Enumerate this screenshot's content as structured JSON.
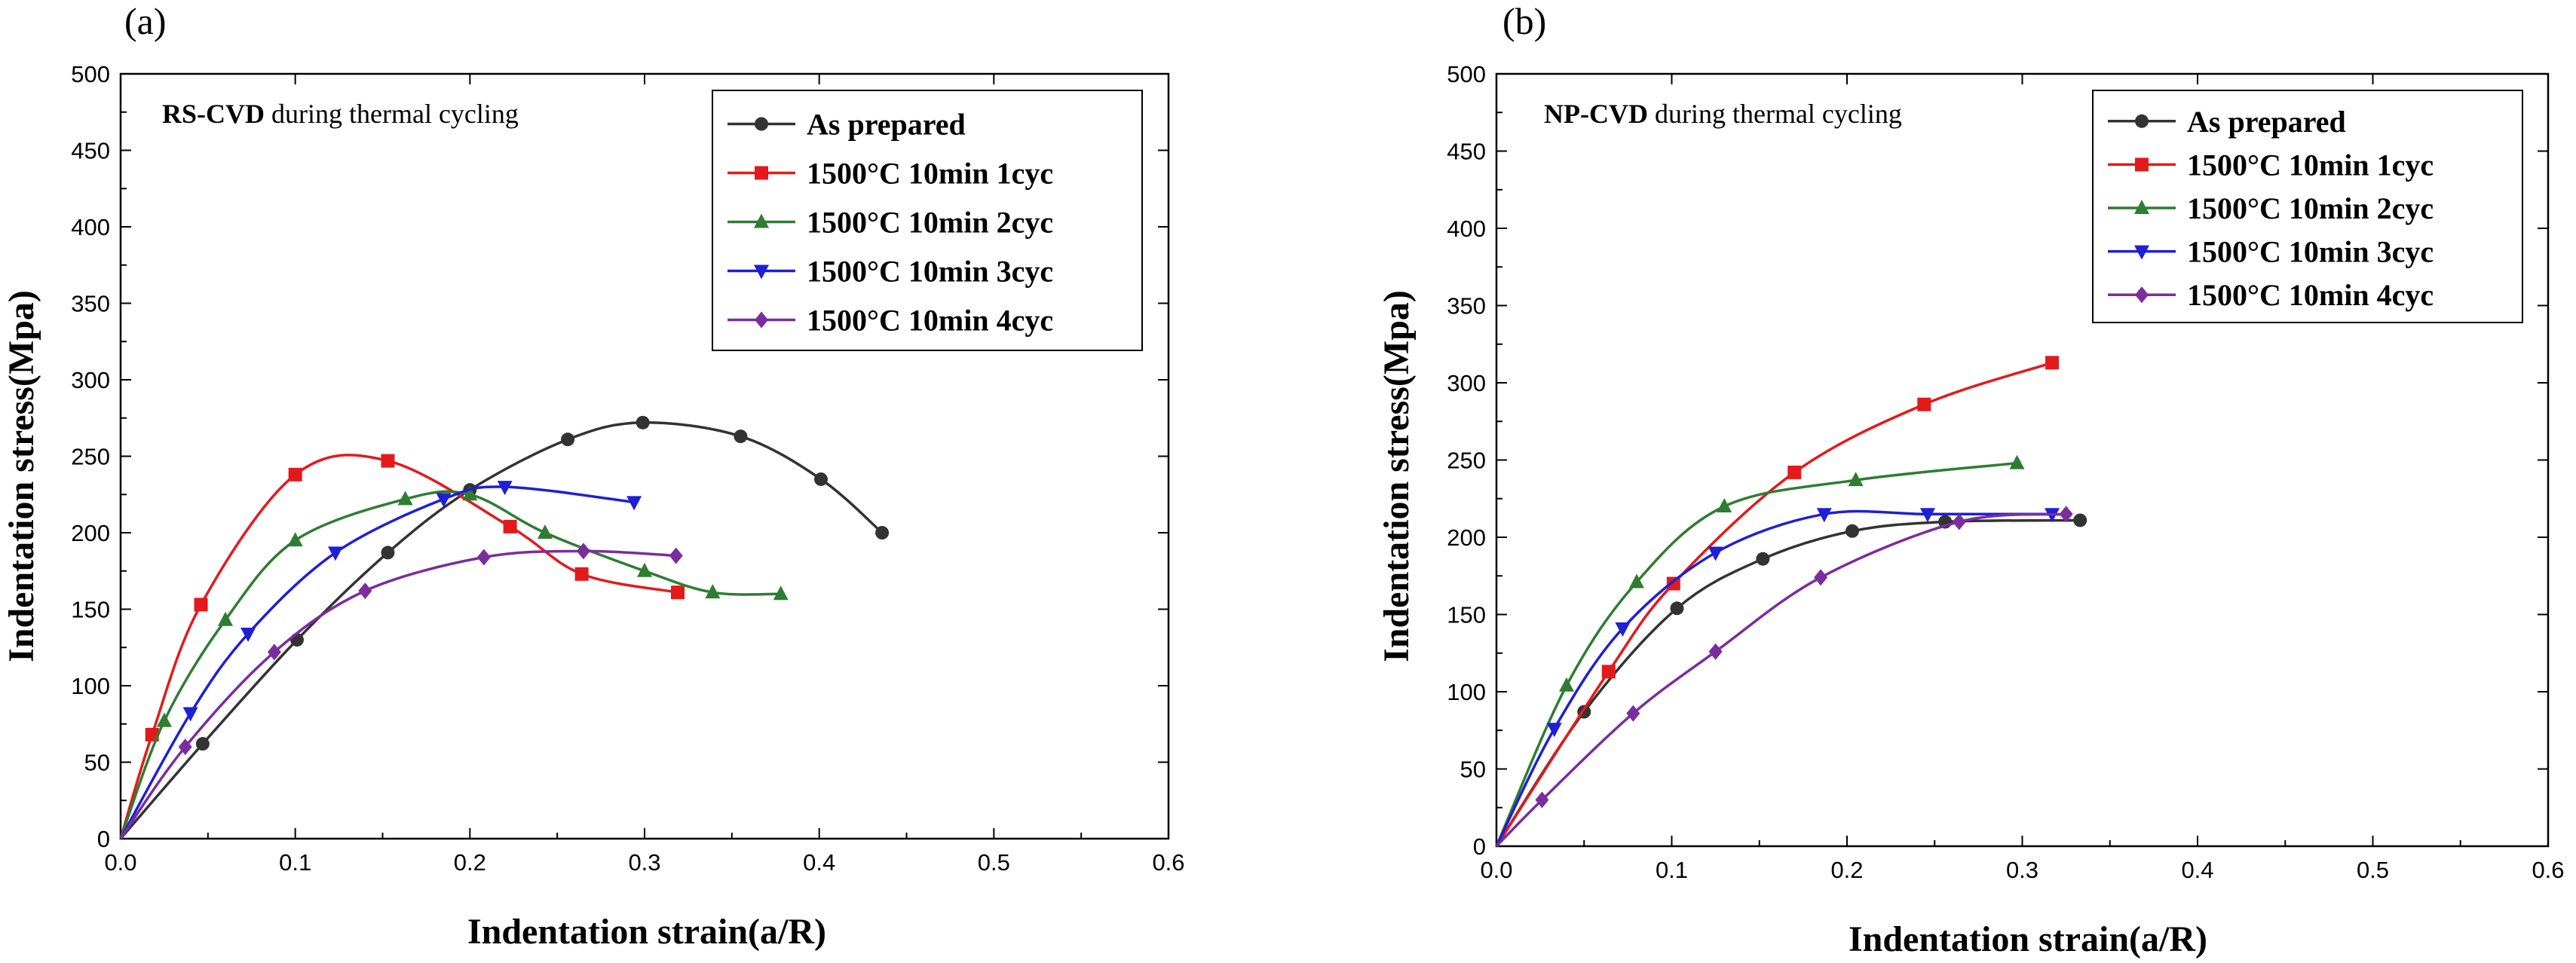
{
  "chart_data": [
    {
      "type": "line",
      "panel_label": "(a)",
      "annotation_bold": "RS-CVD",
      "annotation_rest": " during thermal cycling",
      "xlabel": "Indentation strain(a/R)",
      "ylabel": "Indentation stress(Mpa)",
      "xlim": [
        0.0,
        0.6
      ],
      "ylim": [
        0,
        500
      ],
      "xticks": [
        "0.0",
        "0.1",
        "0.2",
        "0.3",
        "0.4",
        "0.5",
        "0.6"
      ],
      "yticks": [
        "0",
        "50",
        "100",
        "150",
        "200",
        "250",
        "300",
        "350",
        "400",
        "450",
        "500"
      ],
      "grid": false,
      "legend_position": "top-right",
      "series": [
        {
          "name": "As prepared",
          "color": "#333333",
          "marker": "circle",
          "x": [
            0.0,
            0.047,
            0.101,
            0.153,
            0.2,
            0.256,
            0.299,
            0.355,
            0.401,
            0.436
          ],
          "y": [
            0,
            62,
            130,
            187,
            228,
            261,
            272,
            263,
            235,
            200
          ]
        },
        {
          "name": "1500°C 10min 1cyc",
          "color": "#e31a1c",
          "marker": "square",
          "x": [
            0.0,
            0.018,
            0.046,
            0.1,
            0.153,
            0.223,
            0.264,
            0.319
          ],
          "y": [
            0,
            68,
            153,
            238,
            247,
            204,
            173,
            161
          ]
        },
        {
          "name": "1500°C 10min 2cyc",
          "color": "#2e7d32",
          "marker": "triangle-up",
          "x": [
            0.0,
            0.025,
            0.06,
            0.1,
            0.163,
            0.2,
            0.243,
            0.3,
            0.339,
            0.378
          ],
          "y": [
            0,
            77,
            143,
            195,
            222,
            225,
            200,
            175,
            161,
            160
          ]
        },
        {
          "name": "1500°C 10min 3cyc",
          "color": "#1f1fd6",
          "marker": "triangle-down",
          "x": [
            0.0,
            0.04,
            0.073,
            0.123,
            0.185,
            0.22,
            0.294
          ],
          "y": [
            0,
            82,
            134,
            187,
            222,
            230,
            220
          ]
        },
        {
          "name": "1500°C 10min 4cyc",
          "color": "#7b2d9e",
          "marker": "diamond",
          "x": [
            0.0,
            0.037,
            0.088,
            0.14,
            0.208,
            0.265,
            0.318
          ],
          "y": [
            0,
            60,
            122,
            162,
            184,
            188,
            185
          ]
        }
      ]
    },
    {
      "type": "line",
      "panel_label": "(b)",
      "annotation_bold": "NP-CVD",
      "annotation_rest": " during thermal cycling",
      "xlabel": "Indentation strain(a/R)",
      "ylabel": "Indentation stress(Mpa)",
      "xlim": [
        0.0,
        0.6
      ],
      "ylim": [
        0,
        500
      ],
      "xticks": [
        "0.0",
        "0.1",
        "0.2",
        "0.3",
        "0.4",
        "0.5",
        "0.6"
      ],
      "yticks": [
        "0",
        "50",
        "100",
        "150",
        "200",
        "250",
        "300",
        "350",
        "400",
        "450",
        "500"
      ],
      "grid": false,
      "legend_position": "top-right",
      "series": [
        {
          "name": "As prepared",
          "color": "#333333",
          "marker": "circle",
          "x": [
            0.0,
            0.05,
            0.103,
            0.152,
            0.203,
            0.256,
            0.333
          ],
          "y": [
            0,
            87,
            154,
            186,
            204,
            210,
            211
          ]
        },
        {
          "name": "1500°C 10min 1cyc",
          "color": "#e31a1c",
          "marker": "square",
          "x": [
            0.0,
            0.064,
            0.101,
            0.17,
            0.244,
            0.317
          ],
          "y": [
            0,
            113,
            170,
            242,
            286,
            313
          ]
        },
        {
          "name": "1500°C 10min 2cyc",
          "color": "#2e7d32",
          "marker": "triangle-up",
          "x": [
            0.0,
            0.04,
            0.08,
            0.13,
            0.205,
            0.297
          ],
          "y": [
            0,
            104,
            171,
            220,
            237,
            248
          ]
        },
        {
          "name": "1500°C 10min 3cyc",
          "color": "#1f1fd6",
          "marker": "triangle-down",
          "x": [
            0.0,
            0.033,
            0.072,
            0.125,
            0.187,
            0.246,
            0.317
          ],
          "y": [
            0,
            76,
            141,
            190,
            215,
            215,
            215
          ]
        },
        {
          "name": "1500°C 10min 4cyc",
          "color": "#7b2d9e",
          "marker": "diamond",
          "x": [
            0.0,
            0.026,
            0.078,
            0.125,
            0.185,
            0.264,
            0.325
          ],
          "y": [
            0,
            30,
            86,
            126,
            174,
            210,
            215
          ]
        }
      ]
    }
  ]
}
